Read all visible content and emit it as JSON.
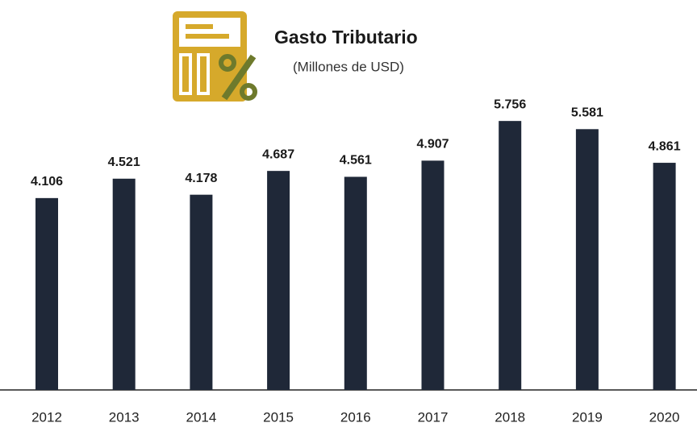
{
  "chart_data": {
    "type": "bar",
    "title": "Gasto Tributario",
    "subtitle": "(Millones de USD)",
    "categories": [
      "2012",
      "2013",
      "2014",
      "2015",
      "2016",
      "2017",
      "2018",
      "2019",
      "2020"
    ],
    "values": [
      4106,
      4521,
      4178,
      4687,
      4561,
      4907,
      5756,
      5581,
      4861
    ],
    "value_labels": [
      "4.106",
      "4.521",
      "4.178",
      "4.687",
      "4.561",
      "4.907",
      "5.756",
      "5.581",
      "4.861"
    ],
    "color": "#1f2838"
  }
}
